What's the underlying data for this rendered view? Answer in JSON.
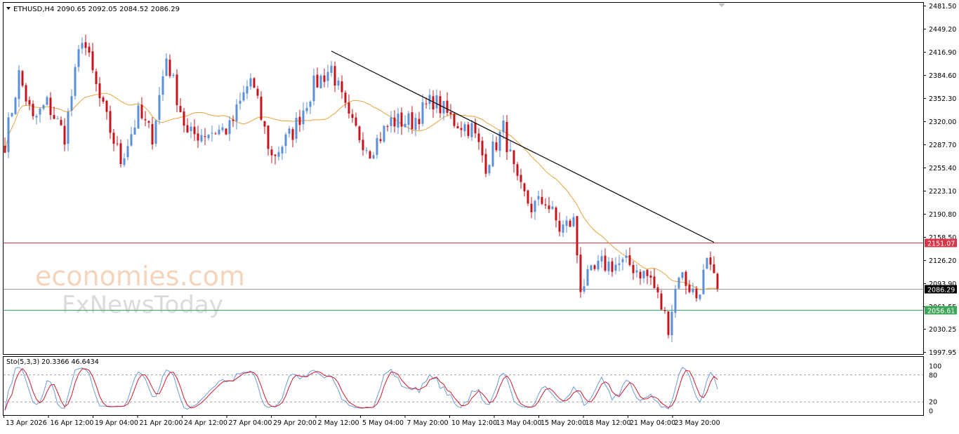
{
  "header": {
    "symbol": "ETHUSD,H4",
    "ohlc": "2090.65 2092.05 2084.52 2086.29",
    "indicator": "Sto(5,3,3) 20.3366 46.6434"
  },
  "watermark": {
    "line1": "economies.com",
    "line2": "FxNewsToday"
  },
  "colors": {
    "bull": "#5b8fd6",
    "bear": "#c4141e",
    "ma": "#e8a33a",
    "trendline": "#000000",
    "resistance": "#d9364a",
    "support": "#3da65a",
    "current": "#9a9a9a",
    "sto_main": "#6f9ad8",
    "sto_signal": "#d0182a"
  },
  "chart_data": {
    "type": "candlestick",
    "y_ticks": [
      "2481.50",
      "2449.20",
      "2416.90",
      "2384.60",
      "2352.30",
      "2320.00",
      "2287.70",
      "2255.40",
      "2223.10",
      "2190.80",
      "2158.50",
      "2126.20",
      "2093.90",
      "2061.55",
      "2030.25",
      "1997.95"
    ],
    "ylim": [
      1997.95,
      2481.5
    ],
    "x_labels": [
      "13 Apr 2026",
      "16 Apr 12:00",
      "19 Apr 04:00",
      "21 Apr 20:00",
      "24 Apr 12:00",
      "27 Apr 04:00",
      "29 Apr 20:00",
      "2 May 12:00",
      "5 May 04:00",
      "7 May 20:00",
      "10 May 12:00",
      "13 May 04:00",
      "15 May 20:00",
      "18 May 12:00",
      "21 May 04:00",
      "23 May 20:00"
    ],
    "levels": [
      {
        "name": "resistance",
        "value": 2151.07,
        "label": "2151.07"
      },
      {
        "name": "current",
        "value": 2086.29,
        "label": "2086.29"
      },
      {
        "name": "support",
        "value": 2056.61,
        "label": "2056.61"
      }
    ],
    "trendline": [
      [
        93,
        2418
      ],
      [
        199,
        2151
      ]
    ],
    "waypoints": [
      [
        0,
        2290
      ],
      [
        4,
        2385
      ],
      [
        8,
        2320
      ],
      [
        12,
        2345
      ],
      [
        17,
        2300
      ],
      [
        22,
        2440
      ],
      [
        27,
        2350
      ],
      [
        33,
        2265
      ],
      [
        38,
        2330
      ],
      [
        42,
        2300
      ],
      [
        46,
        2410
      ],
      [
        52,
        2300
      ],
      [
        58,
        2305
      ],
      [
        64,
        2310
      ],
      [
        70,
        2380
      ],
      [
        76,
        2270
      ],
      [
        82,
        2305
      ],
      [
        88,
        2370
      ],
      [
        93,
        2395
      ],
      [
        98,
        2320
      ],
      [
        104,
        2280
      ],
      [
        110,
        2320
      ],
      [
        116,
        2320
      ],
      [
        122,
        2350
      ],
      [
        128,
        2320
      ],
      [
        133,
        2310
      ],
      [
        137,
        2260
      ],
      [
        142,
        2310
      ],
      [
        146,
        2230
      ],
      [
        150,
        2200
      ],
      [
        154,
        2210
      ],
      [
        158,
        2170
      ],
      [
        162,
        2180
      ],
      [
        164,
        2090
      ],
      [
        170,
        2120
      ],
      [
        178,
        2120
      ],
      [
        184,
        2100
      ],
      [
        189,
        2035
      ],
      [
        192,
        2110
      ],
      [
        197,
        2075
      ],
      [
        200,
        2120
      ],
      [
        203,
        2085
      ]
    ],
    "sto_ylim": [
      0,
      100
    ],
    "sto_ticks": [
      "100",
      "80",
      "20",
      "0"
    ],
    "sto_levels": [
      80,
      20
    ]
  }
}
